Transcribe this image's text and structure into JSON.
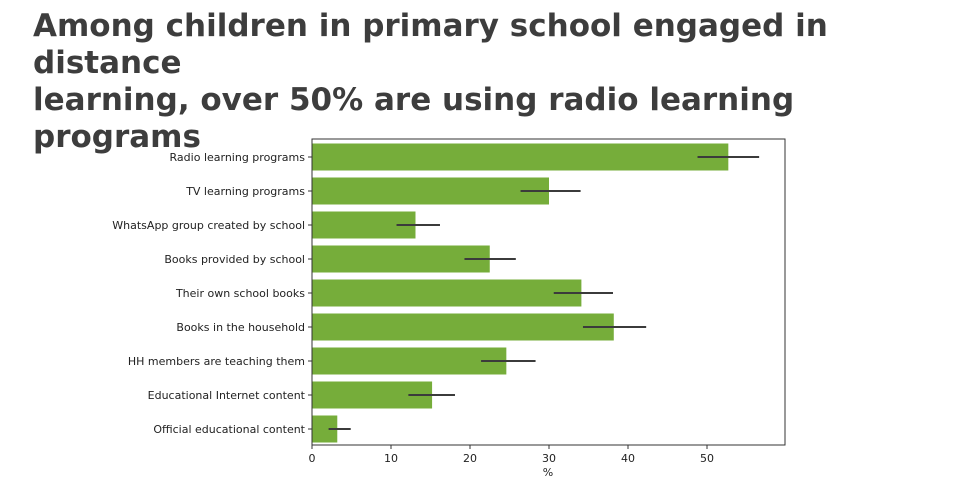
{
  "chart_data": {
    "type": "bar",
    "orientation": "horizontal",
    "title_lines": [
      "Among children in primary school engaged in distance",
      "learning, over 50% are using radio learning programs"
    ],
    "categories": [
      "Radio learning programs",
      "TV learning programs",
      "WhatsApp group created by school",
      "Books provided by school",
      "Their own school books",
      "Books in the household",
      "HH members are teaching them",
      "Educational Internet content",
      "Official educational content"
    ],
    "values": [
      52.7,
      30.0,
      13.1,
      22.5,
      34.1,
      38.2,
      24.6,
      15.2,
      3.2
    ],
    "error_low": [
      48.8,
      26.4,
      10.7,
      19.3,
      30.6,
      34.3,
      21.4,
      12.2,
      2.1
    ],
    "error_high": [
      56.6,
      34.0,
      16.2,
      25.8,
      38.1,
      42.3,
      28.3,
      18.1,
      4.9
    ],
    "x_ticks": [
      0,
      10,
      20,
      30,
      40,
      50
    ],
    "xlim": [
      0,
      60
    ],
    "xlabel": "%",
    "ylabel": "",
    "grid": false,
    "bar_color": "#76ad3a",
    "error_color": "#3b3b3b"
  }
}
